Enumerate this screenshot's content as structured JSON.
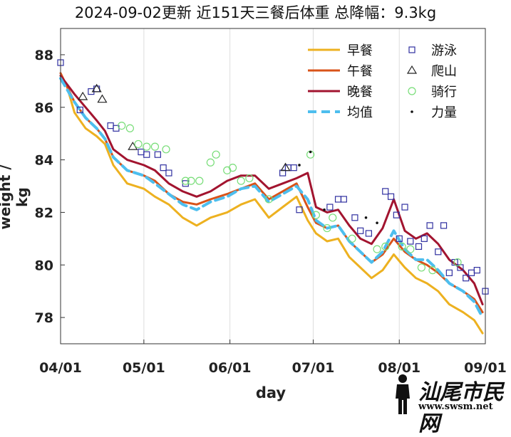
{
  "chart_data": {
    "type": "line",
    "title": "2024-09-02更新 近151天三餐后体重 总降幅：9.3kg",
    "xlabel": "day",
    "ylabel": "weight / kg",
    "x_ticks": [
      "04/01",
      "05/01",
      "06/01",
      "07/01",
      "08/01",
      "09/01"
    ],
    "y_ticks": [
      78,
      80,
      82,
      84,
      86,
      88
    ],
    "xlim": [
      "2024-04-01",
      "2024-09-01"
    ],
    "ylim": [
      77,
      89
    ],
    "grid": "vertical",
    "legend_position": "top-right",
    "series": [
      {
        "name": "早餐",
        "style": "line",
        "color": "#EDB120",
        "points": [
          [
            "2024-04-03",
            86.9
          ],
          [
            "2024-04-06",
            85.8
          ],
          [
            "2024-04-10",
            85.2
          ],
          [
            "2024-04-14",
            84.9
          ],
          [
            "2024-04-17",
            84.6
          ],
          [
            "2024-04-20",
            83.8
          ],
          [
            "2024-04-25",
            83.1
          ],
          [
            "2024-05-01",
            82.9
          ],
          [
            "2024-05-05",
            82.6
          ],
          [
            "2024-05-10",
            82.3
          ],
          [
            "2024-05-15",
            81.8
          ],
          [
            "2024-05-20",
            81.5
          ],
          [
            "2024-05-25",
            81.8
          ],
          [
            "2024-05-31",
            82.0
          ],
          [
            "2024-06-05",
            82.3
          ],
          [
            "2024-06-10",
            82.5
          ],
          [
            "2024-06-15",
            81.8
          ],
          [
            "2024-06-20",
            82.2
          ],
          [
            "2024-06-25",
            82.6
          ],
          [
            "2024-06-29",
            81.7
          ],
          [
            "2024-07-02",
            81.2
          ],
          [
            "2024-07-06",
            80.9
          ],
          [
            "2024-07-10",
            81.0
          ],
          [
            "2024-07-14",
            80.3
          ],
          [
            "2024-07-18",
            79.9
          ],
          [
            "2024-07-22",
            79.5
          ],
          [
            "2024-07-26",
            79.8
          ],
          [
            "2024-07-30",
            80.4
          ],
          [
            "2024-08-03",
            79.9
          ],
          [
            "2024-08-07",
            79.5
          ],
          [
            "2024-08-11",
            79.3
          ],
          [
            "2024-08-15",
            79.0
          ],
          [
            "2024-08-19",
            78.5
          ],
          [
            "2024-08-24",
            78.2
          ],
          [
            "2024-08-28",
            77.9
          ],
          [
            "2024-08-31",
            77.4
          ]
        ]
      },
      {
        "name": "午餐",
        "style": "line",
        "color": "#D95319",
        "points": [
          [
            "2024-04-01",
            87.3
          ],
          [
            "2024-04-06",
            86.2
          ],
          [
            "2024-04-10",
            85.6
          ],
          [
            "2024-04-14",
            85.2
          ],
          [
            "2024-04-17",
            84.8
          ],
          [
            "2024-04-20",
            84.1
          ],
          [
            "2024-04-25",
            83.6
          ],
          [
            "2024-05-01",
            83.4
          ],
          [
            "2024-05-05",
            83.2
          ],
          [
            "2024-05-10",
            82.7
          ],
          [
            "2024-05-15",
            82.4
          ],
          [
            "2024-05-20",
            82.3
          ],
          [
            "2024-05-25",
            82.5
          ],
          [
            "2024-05-31",
            82.7
          ],
          [
            "2024-06-05",
            82.9
          ],
          [
            "2024-06-10",
            83.1
          ],
          [
            "2024-06-15",
            82.5
          ],
          [
            "2024-06-20",
            82.8
          ],
          [
            "2024-06-25",
            83.1
          ],
          [
            "2024-06-29",
            82.2
          ],
          [
            "2024-07-02",
            81.6
          ],
          [
            "2024-07-06",
            81.4
          ],
          [
            "2024-07-10",
            81.5
          ],
          [
            "2024-07-14",
            80.9
          ],
          [
            "2024-07-18",
            80.5
          ],
          [
            "2024-07-22",
            80.1
          ],
          [
            "2024-07-26",
            80.4
          ],
          [
            "2024-07-30",
            81.0
          ],
          [
            "2024-08-03",
            80.5
          ],
          [
            "2024-08-07",
            80.2
          ],
          [
            "2024-08-11",
            80.0
          ],
          [
            "2024-08-15",
            79.7
          ],
          [
            "2024-08-19",
            79.3
          ],
          [
            "2024-08-24",
            79.0
          ],
          [
            "2024-08-28",
            78.7
          ],
          [
            "2024-08-31",
            78.2
          ]
        ]
      },
      {
        "name": "晚餐",
        "style": "line",
        "color": "#A2142F",
        "points": [
          [
            "2024-04-01",
            87.2
          ],
          [
            "2024-04-06",
            86.5
          ],
          [
            "2024-04-10",
            86.0
          ],
          [
            "2024-04-14",
            85.5
          ],
          [
            "2024-04-17",
            85.1
          ],
          [
            "2024-04-20",
            84.4
          ],
          [
            "2024-04-25",
            84.0
          ],
          [
            "2024-05-01",
            83.8
          ],
          [
            "2024-05-05",
            83.6
          ],
          [
            "2024-05-10",
            83.1
          ],
          [
            "2024-05-15",
            82.8
          ],
          [
            "2024-05-20",
            82.6
          ],
          [
            "2024-05-25",
            82.8
          ],
          [
            "2024-05-31",
            83.2
          ],
          [
            "2024-06-05",
            83.4
          ],
          [
            "2024-06-10",
            83.4
          ],
          [
            "2024-06-15",
            82.9
          ],
          [
            "2024-06-20",
            83.1
          ],
          [
            "2024-06-25",
            83.3
          ],
          [
            "2024-06-29",
            83.5
          ],
          [
            "2024-07-02",
            82.2
          ],
          [
            "2024-07-06",
            82.0
          ],
          [
            "2024-07-10",
            82.1
          ],
          [
            "2024-07-14",
            81.5
          ],
          [
            "2024-07-18",
            81.0
          ],
          [
            "2024-07-22",
            80.8
          ],
          [
            "2024-07-26",
            81.4
          ],
          [
            "2024-07-30",
            82.5
          ],
          [
            "2024-08-03",
            81.3
          ],
          [
            "2024-08-07",
            81.0
          ],
          [
            "2024-08-11",
            81.2
          ],
          [
            "2024-08-15",
            80.8
          ],
          [
            "2024-08-19",
            80.2
          ],
          [
            "2024-08-24",
            79.8
          ],
          [
            "2024-08-28",
            79.3
          ],
          [
            "2024-08-31",
            78.5
          ]
        ]
      },
      {
        "name": "均值",
        "style": "dashed",
        "color": "#4DBEEE",
        "points": [
          [
            "2024-04-01",
            87.1
          ],
          [
            "2024-04-06",
            86.2
          ],
          [
            "2024-04-10",
            85.6
          ],
          [
            "2024-04-14",
            85.2
          ],
          [
            "2024-04-17",
            84.8
          ],
          [
            "2024-04-20",
            84.1
          ],
          [
            "2024-04-25",
            83.6
          ],
          [
            "2024-05-01",
            83.4
          ],
          [
            "2024-05-05",
            83.1
          ],
          [
            "2024-05-10",
            82.7
          ],
          [
            "2024-05-15",
            82.3
          ],
          [
            "2024-05-20",
            82.1
          ],
          [
            "2024-05-25",
            82.4
          ],
          [
            "2024-05-31",
            82.6
          ],
          [
            "2024-06-05",
            82.9
          ],
          [
            "2024-06-10",
            83.0
          ],
          [
            "2024-06-15",
            82.4
          ],
          [
            "2024-06-20",
            82.7
          ],
          [
            "2024-06-25",
            83.0
          ],
          [
            "2024-06-29",
            82.5
          ],
          [
            "2024-07-02",
            81.7
          ],
          [
            "2024-07-06",
            81.4
          ],
          [
            "2024-07-10",
            81.5
          ],
          [
            "2024-07-14",
            80.9
          ],
          [
            "2024-07-18",
            80.5
          ],
          [
            "2024-07-22",
            80.1
          ],
          [
            "2024-07-26",
            80.5
          ],
          [
            "2024-07-30",
            81.3
          ],
          [
            "2024-08-03",
            80.6
          ],
          [
            "2024-08-07",
            80.2
          ],
          [
            "2024-08-11",
            80.2
          ],
          [
            "2024-08-15",
            79.8
          ],
          [
            "2024-08-19",
            79.3
          ],
          [
            "2024-08-24",
            79.0
          ],
          [
            "2024-08-28",
            78.6
          ],
          [
            "2024-08-31",
            78.0
          ]
        ]
      },
      {
        "name": "游泳",
        "style": "square",
        "color": "#3030A0",
        "points": [
          [
            "2024-04-01",
            87.7
          ],
          [
            "2024-04-08",
            85.9
          ],
          [
            "2024-04-12",
            86.6
          ],
          [
            "2024-04-14",
            86.7
          ],
          [
            "2024-04-19",
            85.3
          ],
          [
            "2024-04-21",
            85.2
          ],
          [
            "2024-04-30",
            84.3
          ],
          [
            "2024-05-02",
            84.2
          ],
          [
            "2024-05-06",
            84.2
          ],
          [
            "2024-05-08",
            83.7
          ],
          [
            "2024-05-10",
            83.5
          ],
          [
            "2024-05-16",
            83.1
          ],
          [
            "2024-06-20",
            83.5
          ],
          [
            "2024-06-22",
            83.7
          ],
          [
            "2024-06-24",
            83.7
          ],
          [
            "2024-06-26",
            82.1
          ],
          [
            "2024-07-07",
            82.2
          ],
          [
            "2024-07-10",
            82.5
          ],
          [
            "2024-07-12",
            82.5
          ],
          [
            "2024-07-16",
            81.8
          ],
          [
            "2024-07-18",
            81.3
          ],
          [
            "2024-07-21",
            81.2
          ],
          [
            "2024-07-27",
            82.8
          ],
          [
            "2024-07-29",
            82.6
          ],
          [
            "2024-07-31",
            81.9
          ],
          [
            "2024-08-01",
            81.0
          ],
          [
            "2024-08-03",
            82.2
          ],
          [
            "2024-08-05",
            80.9
          ],
          [
            "2024-08-08",
            80.7
          ],
          [
            "2024-08-10",
            81.0
          ],
          [
            "2024-08-12",
            81.5
          ],
          [
            "2024-08-15",
            80.5
          ],
          [
            "2024-08-17",
            81.5
          ],
          [
            "2024-08-19",
            79.7
          ],
          [
            "2024-08-21",
            80.1
          ],
          [
            "2024-08-23",
            79.9
          ],
          [
            "2024-08-25",
            79.5
          ],
          [
            "2024-08-27",
            79.7
          ],
          [
            "2024-08-29",
            79.8
          ],
          [
            "2024-09-01",
            79.0
          ]
        ]
      },
      {
        "name": "爬山",
        "style": "triangle",
        "color": "#222222",
        "points": [
          [
            "2024-04-09",
            86.4
          ],
          [
            "2024-04-14",
            86.7
          ],
          [
            "2024-04-16",
            86.3
          ],
          [
            "2024-04-27",
            84.5
          ],
          [
            "2024-06-21",
            83.7
          ]
        ]
      },
      {
        "name": "骑行",
        "style": "circle",
        "color": "#77DD77",
        "points": [
          [
            "2024-04-23",
            85.3
          ],
          [
            "2024-04-26",
            85.2
          ],
          [
            "2024-04-29",
            84.6
          ],
          [
            "2024-05-02",
            84.5
          ],
          [
            "2024-05-05",
            84.5
          ],
          [
            "2024-05-09",
            84.4
          ],
          [
            "2024-05-16",
            83.2
          ],
          [
            "2024-05-18",
            83.2
          ],
          [
            "2024-05-21",
            83.2
          ],
          [
            "2024-05-25",
            83.9
          ],
          [
            "2024-05-27",
            84.2
          ],
          [
            "2024-05-31",
            83.6
          ],
          [
            "2024-06-02",
            83.7
          ],
          [
            "2024-06-05",
            83.2
          ],
          [
            "2024-06-08",
            83.3
          ],
          [
            "2024-06-15",
            82.5
          ],
          [
            "2024-06-30",
            84.2
          ],
          [
            "2024-07-02",
            81.9
          ],
          [
            "2024-07-06",
            81.4
          ],
          [
            "2024-07-08",
            81.8
          ],
          [
            "2024-07-15",
            81.0
          ],
          [
            "2024-07-24",
            80.6
          ],
          [
            "2024-07-27",
            80.7
          ],
          [
            "2024-08-02",
            80.7
          ],
          [
            "2024-08-05",
            80.6
          ],
          [
            "2024-08-09",
            79.9
          ],
          [
            "2024-08-13",
            79.8
          ],
          [
            "2024-08-22",
            80.1
          ]
        ]
      },
      {
        "name": "力量",
        "style": "dot",
        "color": "#111111",
        "points": [
          [
            "2024-06-26",
            83.8
          ],
          [
            "2024-06-30",
            84.3
          ],
          [
            "2024-07-05",
            82.1
          ],
          [
            "2024-07-20",
            81.8
          ],
          [
            "2024-07-24",
            81.6
          ]
        ]
      }
    ]
  },
  "watermark": {
    "text": "汕尾市民网",
    "url": "www.swsm.net"
  }
}
